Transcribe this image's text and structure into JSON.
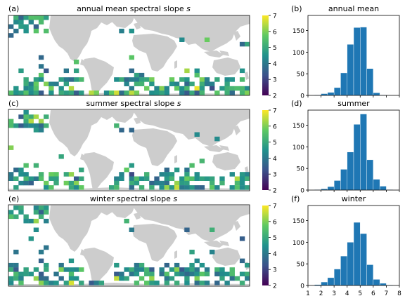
{
  "figure": {
    "colormap_stops": [
      "#440154",
      "#3b528b",
      "#21918c",
      "#5ec962",
      "#fde725"
    ]
  },
  "chart_data": [
    {
      "type": "heatmap",
      "panel_label": "(a)",
      "title": "annual mean spectral slope s",
      "title_main": "annual mean spectral slope ",
      "title_symbol": "s",
      "colorbar": {
        "min": 2,
        "max": 7,
        "ticks": [
          "2",
          "3",
          "4",
          "5",
          "6",
          "7"
        ]
      },
      "value_range": [
        2,
        7
      ],
      "grid": false
    },
    {
      "type": "bar",
      "panel_label": "(b)",
      "title": "annual mean",
      "bin_edges": [
        1.0,
        1.5,
        2.0,
        2.5,
        3.0,
        3.5,
        4.0,
        4.5,
        5.0,
        5.5,
        6.0,
        6.5,
        7.0,
        7.5,
        8.0
      ],
      "values": [
        0,
        1,
        4,
        7,
        18,
        52,
        118,
        157,
        158,
        62,
        6,
        1,
        0,
        0
      ],
      "xlim": [
        1,
        8
      ],
      "ylim": [
        0,
        185
      ],
      "yticks": [
        "0",
        "50",
        "100",
        "150"
      ],
      "color": "#1f77b4"
    },
    {
      "type": "heatmap",
      "panel_label": "(c)",
      "title": "summer spectral slope s",
      "title_main": "summer spectral slope ",
      "title_symbol": "s",
      "colorbar": {
        "min": 2,
        "max": 7,
        "ticks": [
          "2",
          "3",
          "4",
          "5",
          "6",
          "7"
        ]
      },
      "value_range": [
        2,
        7
      ],
      "grid": false
    },
    {
      "type": "bar",
      "panel_label": "(d)",
      "title": "summer",
      "bin_edges": [
        1.0,
        1.5,
        2.0,
        2.5,
        3.0,
        3.5,
        4.0,
        4.5,
        5.0,
        5.5,
        6.0,
        6.5,
        7.0,
        7.5,
        8.0
      ],
      "values": [
        0,
        1,
        3,
        8,
        22,
        48,
        88,
        152,
        176,
        70,
        25,
        9,
        1,
        0
      ],
      "xlim": [
        1,
        8
      ],
      "ylim": [
        0,
        185
      ],
      "yticks": [
        "0",
        "50",
        "100",
        "150"
      ],
      "color": "#1f77b4"
    },
    {
      "type": "heatmap",
      "panel_label": "(e)",
      "title": "winter spectral slope s",
      "title_main": "winter spectral slope ",
      "title_symbol": "s",
      "colorbar": {
        "min": 2,
        "max": 7,
        "ticks": [
          "2",
          "3",
          "4",
          "5",
          "6",
          "7"
        ]
      },
      "value_range": [
        2,
        7
      ],
      "grid": false
    },
    {
      "type": "bar",
      "panel_label": "(f)",
      "title": "winter",
      "bin_edges": [
        1.0,
        1.5,
        2.0,
        2.5,
        3.0,
        3.5,
        4.0,
        4.5,
        5.0,
        5.5,
        6.0,
        6.5,
        7.0,
        7.5,
        8.0
      ],
      "values": [
        0,
        2,
        8,
        18,
        38,
        68,
        100,
        146,
        120,
        48,
        14,
        5,
        1,
        0
      ],
      "xlim": [
        1,
        8
      ],
      "ylim": [
        0,
        185
      ],
      "yticks": [
        "0",
        "50",
        "100",
        "150"
      ],
      "xticks": [
        "1",
        "2",
        "3",
        "4",
        "5",
        "6",
        "7",
        "8"
      ],
      "color": "#1f77b4"
    }
  ]
}
